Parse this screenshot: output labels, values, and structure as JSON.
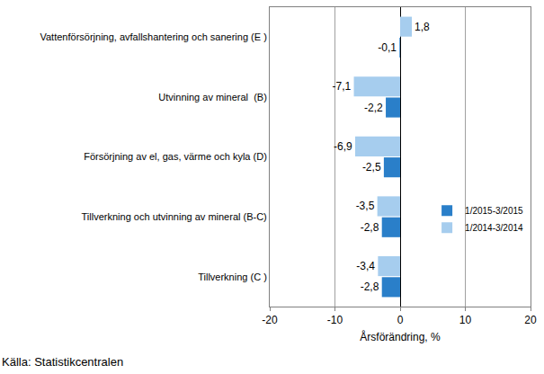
{
  "chart_data": {
    "type": "bar",
    "orientation": "horizontal",
    "categories": [
      "Vattenförsörjning, avfallshantering och sanering (E )",
      "Utvinning av mineral  (B)",
      "Försörjning av el, gas, värme och kyla (D)",
      "Tillverkning och utvinning av mineral (B-C)",
      "Tillverkning (C )"
    ],
    "series": [
      {
        "name": "1/2015-3/2015",
        "color": "#2a7fc9",
        "values": [
          -0.1,
          -2.2,
          -2.5,
          -2.8,
          -2.8
        ],
        "value_labels": [
          "-0,1",
          "-2,2",
          "-2,5",
          "-2,8",
          "-2,8"
        ]
      },
      {
        "name": "1/2014-3/2014",
        "color": "#a6cdee",
        "values": [
          1.8,
          -7.1,
          -6.9,
          -3.5,
          -3.4
        ],
        "value_labels": [
          "1,8",
          "-7,1",
          "-6,9",
          "-3,5",
          "-3,4"
        ]
      }
    ],
    "x_label": "Årsförändring, %",
    "xlim": [
      -20,
      20
    ],
    "xticks": [
      -20,
      -10,
      0,
      10,
      20
    ],
    "grid": true,
    "legend": "lower right",
    "data_labels": true,
    "annotations": [
      "Källa: Statistikcentralen"
    ]
  }
}
